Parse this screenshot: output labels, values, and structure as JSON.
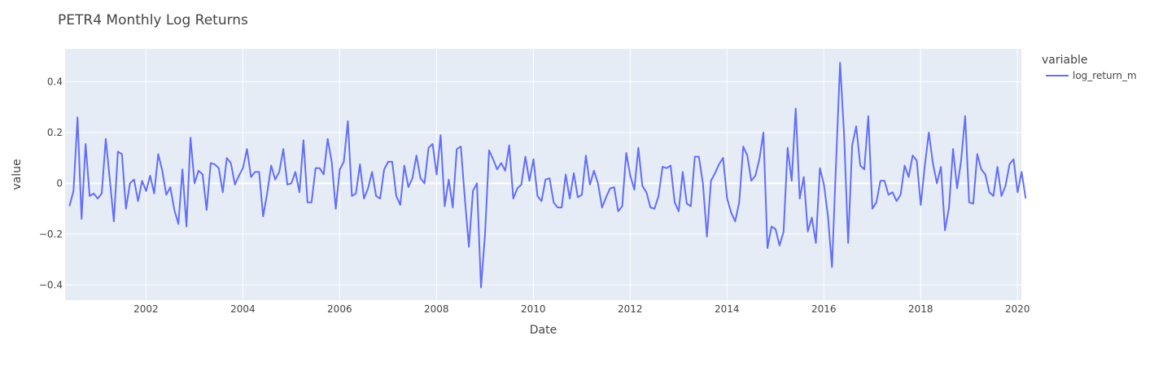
{
  "chart_data": {
    "type": "line",
    "title": "PETR4 Monthly Log Returns",
    "xlabel": "Date",
    "ylabel": "value",
    "legend": {
      "title": "variable",
      "position": "right"
    },
    "xlim": [
      2000.33,
      2020.08
    ],
    "ylim": [
      -0.46,
      0.53
    ],
    "x_ticks": [
      2002,
      2004,
      2006,
      2008,
      2010,
      2012,
      2014,
      2016,
      2018,
      2020
    ],
    "x_tick_labels": [
      "2002",
      "2004",
      "2006",
      "2008",
      "2010",
      "2012",
      "2014",
      "2016",
      "2018",
      "2020"
    ],
    "y_ticks": [
      -0.4,
      -0.2,
      0,
      0.2,
      0.4
    ],
    "y_tick_labels": [
      "−0.4",
      "−0.2",
      "0",
      "0.2",
      "0.4"
    ],
    "colors": {
      "plot_bg": "#E5ECF6",
      "grid": "#ffffff",
      "line": "#636EFA"
    },
    "series": [
      {
        "name": "log_return_m",
        "start_year": 2000.42,
        "step": 0.08333,
        "values": [
          -0.09,
          -0.03,
          0.26,
          -0.14,
          0.155,
          -0.05,
          -0.04,
          -0.06,
          -0.04,
          0.175,
          0.015,
          -0.15,
          0.125,
          0.115,
          -0.1,
          0.0,
          0.015,
          -0.07,
          0.01,
          -0.03,
          0.03,
          -0.04,
          0.115,
          0.05,
          -0.045,
          -0.015,
          -0.105,
          -0.16,
          0.055,
          -0.17,
          0.18,
          0.0,
          0.05,
          0.035,
          -0.105,
          0.08,
          0.075,
          0.06,
          -0.035,
          0.1,
          0.08,
          -0.005,
          0.03,
          0.06,
          0.135,
          0.025,
          0.045,
          0.045,
          -0.13,
          -0.04,
          0.07,
          0.015,
          0.045,
          0.135,
          -0.005,
          0.0,
          0.045,
          -0.035,
          0.17,
          -0.075,
          -0.075,
          0.06,
          0.06,
          0.035,
          0.175,
          0.085,
          -0.1,
          0.055,
          0.085,
          0.245,
          -0.05,
          -0.04,
          0.075,
          -0.06,
          -0.02,
          0.045,
          -0.05,
          -0.06,
          0.055,
          0.085,
          0.085,
          -0.05,
          -0.085,
          0.07,
          -0.015,
          0.02,
          0.11,
          0.02,
          0.0,
          0.14,
          0.155,
          0.035,
          0.19,
          -0.09,
          0.015,
          -0.095,
          0.135,
          0.145,
          -0.06,
          -0.25,
          -0.03,
          0.0,
          -0.41,
          -0.2,
          0.13,
          0.095,
          0.055,
          0.08,
          0.05,
          0.15,
          -0.06,
          -0.02,
          -0.005,
          0.105,
          0.01,
          0.095,
          -0.05,
          -0.07,
          0.015,
          0.02,
          -0.075,
          -0.095,
          -0.095,
          0.035,
          -0.06,
          0.04,
          -0.055,
          -0.045,
          0.11,
          -0.005,
          0.05,
          0.0,
          -0.095,
          -0.055,
          -0.02,
          -0.015,
          -0.11,
          -0.09,
          0.12,
          0.03,
          -0.025,
          0.14,
          -0.01,
          -0.035,
          -0.095,
          -0.1,
          -0.05,
          0.065,
          0.06,
          0.07,
          -0.075,
          -0.11,
          0.045,
          -0.08,
          -0.09,
          0.105,
          0.105,
          0.0,
          -0.21,
          0.01,
          0.04,
          0.075,
          0.1,
          -0.06,
          -0.115,
          -0.15,
          -0.075,
          0.145,
          0.11,
          0.01,
          0.03,
          0.095,
          0.2,
          -0.255,
          -0.17,
          -0.18,
          -0.245,
          -0.19,
          0.14,
          0.01,
          0.295,
          -0.06,
          0.025,
          -0.19,
          -0.135,
          -0.235,
          0.06,
          -0.005,
          -0.13,
          -0.33,
          0.08,
          0.475,
          0.19,
          -0.235,
          0.15,
          0.225,
          0.07,
          0.055,
          0.265,
          -0.1,
          -0.075,
          0.01,
          0.01,
          -0.045,
          -0.035,
          -0.07,
          -0.045,
          0.07,
          0.025,
          0.11,
          0.09,
          -0.085,
          0.07,
          0.2,
          0.08,
          0.0,
          0.065,
          -0.185,
          -0.095,
          0.135,
          -0.02,
          0.09,
          0.265,
          -0.075,
          -0.08,
          0.115,
          0.055,
          0.035,
          -0.035,
          -0.05,
          0.065,
          -0.05,
          -0.01,
          0.075,
          0.095,
          -0.035,
          0.045,
          -0.06
        ]
      }
    ]
  }
}
